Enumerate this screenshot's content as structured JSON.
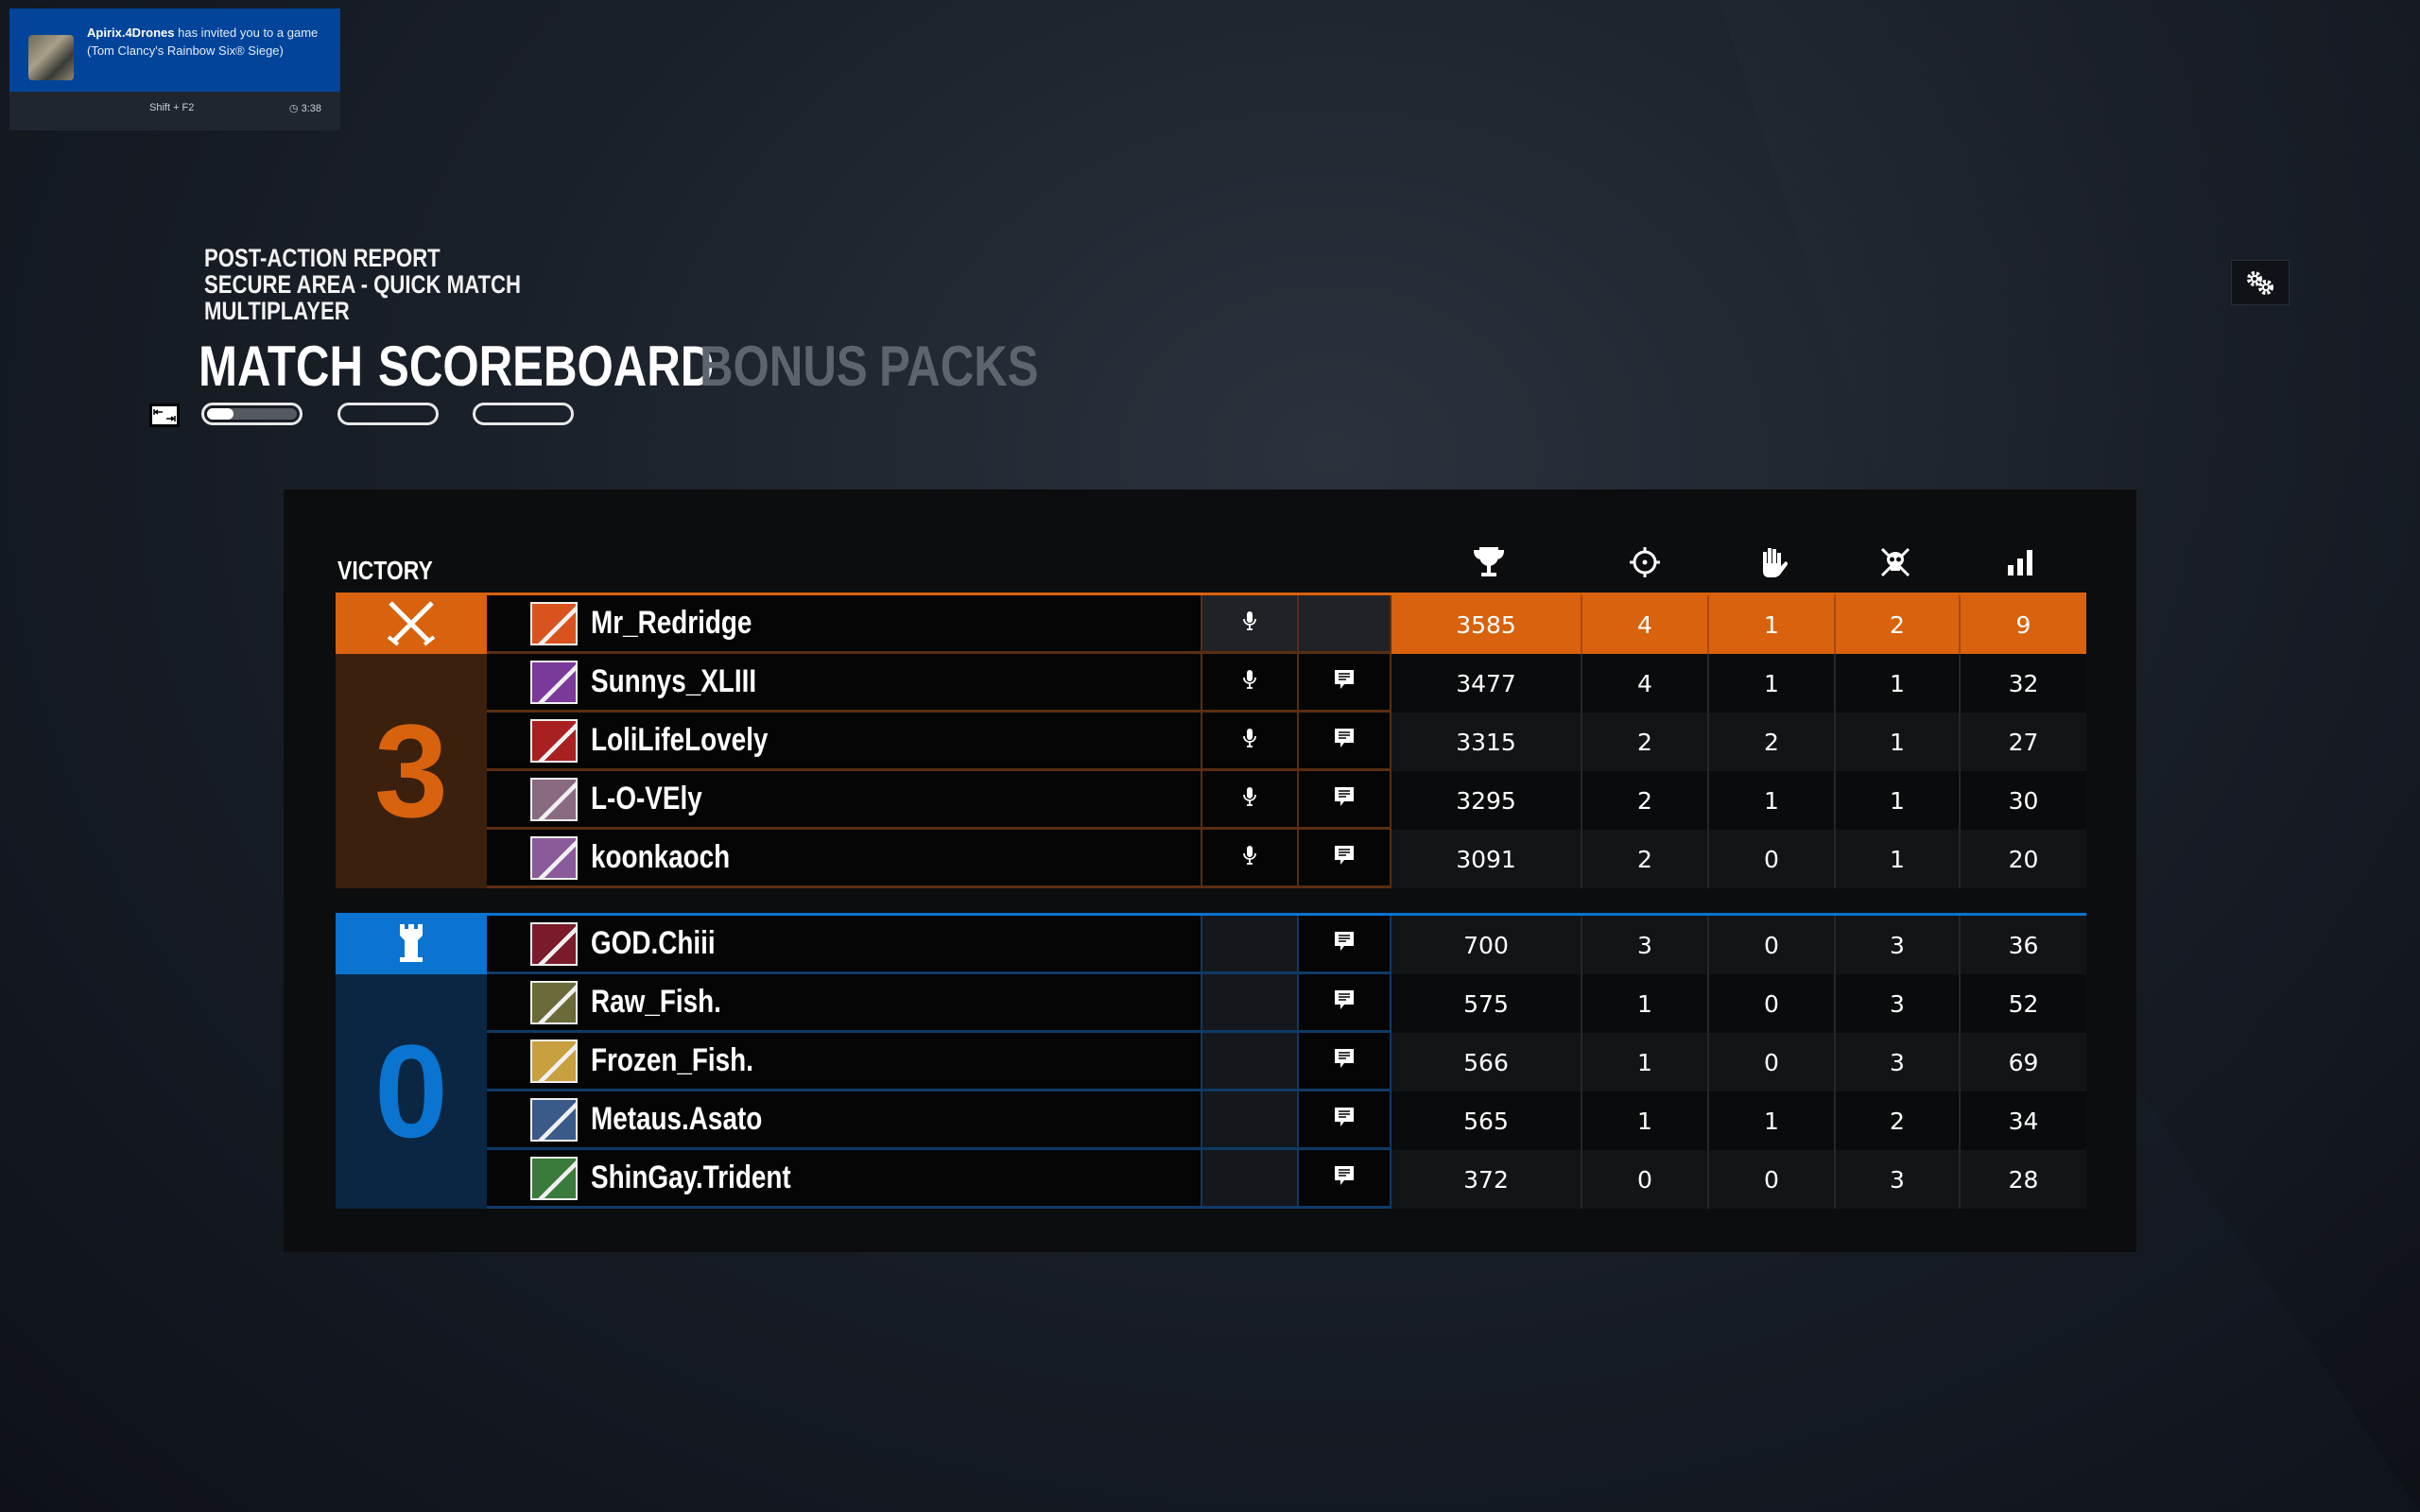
{
  "notification": {
    "sender": "Apirix.4Drones",
    "message": "has invited you to a game (Tom Clancy's Rainbow Six® Siege)",
    "shortcut": "Shift + F2",
    "time": "3:38"
  },
  "header": {
    "lines": [
      "POST-ACTION REPORT",
      "SECURE AREA - QUICK MATCH",
      "MULTIPLAYER"
    ]
  },
  "tabs": [
    {
      "label": "MATCH",
      "active": true
    },
    {
      "label": "SCOREBOARD",
      "active": true
    },
    {
      "label": "BONUS",
      "active": false
    },
    {
      "label": "PACKS",
      "active": false
    }
  ],
  "result_label": "VICTORY",
  "stat_columns": [
    "trophy-icon",
    "crosshair-icon",
    "hand-icon",
    "skull-crossbones-icon",
    "signal-bars-icon"
  ],
  "colors": {
    "orange": "#d9620e",
    "orange_dark": "#3c200e",
    "blue": "#0a74d0",
    "blue_dark": "#0b2642"
  },
  "teams": [
    {
      "side": "attackers",
      "icon": "crossed-swords-icon",
      "score": "3",
      "players": [
        {
          "name": "Mr_Redridge",
          "score": "3585",
          "kills": "4",
          "assists": "1",
          "deaths": "2",
          "ping": "9",
          "mic": true,
          "chat": false,
          "highlight": true,
          "op_color": "#d9531e"
        },
        {
          "name": "Sunnys_XLIII",
          "score": "3477",
          "kills": "4",
          "assists": "1",
          "deaths": "1",
          "ping": "32",
          "mic": true,
          "chat": true,
          "op_color": "#7a3a9a"
        },
        {
          "name": "LoliLifeLovely",
          "score": "3315",
          "kills": "2",
          "assists": "2",
          "deaths": "1",
          "ping": "27",
          "mic": true,
          "chat": true,
          "op_color": "#a82020"
        },
        {
          "name": "L-O-VEly",
          "score": "3295",
          "kills": "2",
          "assists": "1",
          "deaths": "1",
          "ping": "30",
          "mic": true,
          "chat": true,
          "op_color": "#8a6a80"
        },
        {
          "name": "koonkaoch",
          "score": "3091",
          "kills": "2",
          "assists": "0",
          "deaths": "1",
          "ping": "20",
          "mic": true,
          "chat": true,
          "op_color": "#8a5a9a"
        }
      ]
    },
    {
      "side": "defenders",
      "icon": "castle-tower-icon",
      "score": "0",
      "players": [
        {
          "name": "GOD.Chiii",
          "score": "700",
          "kills": "3",
          "assists": "0",
          "deaths": "3",
          "ping": "36",
          "mic": false,
          "chat": true,
          "op_color": "#7a1a2a"
        },
        {
          "name": "Raw_Fish.",
          "score": "575",
          "kills": "1",
          "assists": "0",
          "deaths": "3",
          "ping": "52",
          "mic": false,
          "chat": true,
          "op_color": "#6a6a3a"
        },
        {
          "name": "Frozen_Fish.",
          "score": "566",
          "kills": "1",
          "assists": "0",
          "deaths": "3",
          "ping": "69",
          "mic": false,
          "chat": true,
          "op_color": "#c9a040"
        },
        {
          "name": "Metaus.Asato",
          "score": "565",
          "kills": "1",
          "assists": "1",
          "deaths": "2",
          "ping": "34",
          "mic": false,
          "chat": true,
          "op_color": "#3a5a8a"
        },
        {
          "name": "ShinGay.Trident",
          "score": "372",
          "kills": "0",
          "assists": "0",
          "deaths": "3",
          "ping": "28",
          "mic": false,
          "chat": true,
          "op_color": "#3a7a3a"
        }
      ]
    }
  ]
}
